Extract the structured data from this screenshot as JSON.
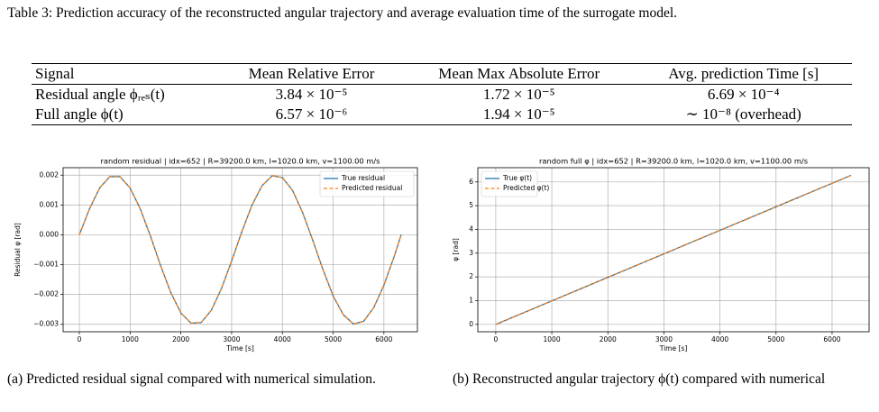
{
  "table": {
    "caption": "Table 3: Prediction accuracy of the reconstructed angular trajectory and average evaluation time of the surrogate model.",
    "header": [
      "Signal",
      "Mean Relative Error",
      "Mean Max Absolute Error",
      "Avg. prediction Time [s]"
    ],
    "rows": [
      [
        "Residual angle ϕᵣₑₛ(t)",
        "3.84 × 10⁻⁵",
        "1.72 × 10⁻⁵",
        "6.69 × 10⁻⁴"
      ],
      [
        "Full angle ϕ(t)",
        "6.57 × 10⁻⁶",
        "1.94 × 10⁻⁵",
        "∼ 10⁻⁸ (overhead)"
      ]
    ]
  },
  "chart_data": [
    {
      "type": "line",
      "title": "random residual | idx=652 | R=39200.0 km, l=1020.0 km, v=1100.00 m/s",
      "x_label": "Time [s]",
      "y_label": "Residual φ [rad]",
      "x": [
        0,
        200,
        400,
        600,
        800,
        1000,
        1200,
        1400,
        1600,
        1800,
        2000,
        2200,
        2400,
        2600,
        2800,
        3000,
        3200,
        3400,
        3600,
        3800,
        4000,
        4200,
        4400,
        4600,
        4800,
        5000,
        5200,
        5400,
        5600,
        5800,
        6000,
        6200,
        6340
      ],
      "series": [
        {
          "name": "True residual",
          "color": "#1f77b4",
          "dash": false,
          "values": [
            0,
            0.00087,
            0.00157,
            0.00195,
            0.00195,
            0.00157,
            0.00087,
            -4e-05,
            -0.00103,
            -0.00193,
            -0.00262,
            -0.00296,
            -0.00294,
            -0.00253,
            -0.0018,
            -0.00088,
            0.0001,
            0.00099,
            0.00165,
            0.00198,
            0.00192,
            0.00149,
            0.00074,
            -0.00019,
            -0.00117,
            -0.00205,
            -0.00268,
            -0.00299,
            -0.0029,
            -0.00244,
            -0.00169,
            -0.00074,
            0
          ]
        },
        {
          "name": "Predicted residual",
          "color": "#ff7f0e",
          "dash": true,
          "values": [
            0,
            0.00087,
            0.00157,
            0.00195,
            0.00195,
            0.00157,
            0.00087,
            -4e-05,
            -0.00103,
            -0.00193,
            -0.00262,
            -0.00296,
            -0.00294,
            -0.00253,
            -0.0018,
            -0.00088,
            0.0001,
            0.00099,
            0.00165,
            0.00198,
            0.00192,
            0.00149,
            0.00074,
            -0.00019,
            -0.00117,
            -0.00205,
            -0.00268,
            -0.00299,
            -0.0029,
            -0.00244,
            -0.00169,
            -0.00074,
            0
          ]
        }
      ],
      "xlim": [
        -320,
        6660
      ],
      "xticks": [
        0,
        1000,
        2000,
        3000,
        4000,
        5000,
        6000
      ],
      "ylim": [
        -0.00325,
        0.00225
      ],
      "yticks": [
        {
          "value": -0.003,
          "label": "−0.003"
        },
        {
          "value": -0.002,
          "label": "−0.002"
        },
        {
          "value": -0.001,
          "label": "−0.001"
        },
        {
          "value": 0,
          "label": "0.000"
        },
        0.001,
        0.002
      ],
      "grid": true,
      "legend": "upper right"
    },
    {
      "type": "line",
      "title": "random full φ | idx=652 | R=39200.0 km, l=1020.0 km, v=1100.00 m/s",
      "x_label": "Time [s]",
      "y_label": "φ [rad]",
      "x": [
        0,
        6340
      ],
      "series": [
        {
          "name": "True φ(t)",
          "color": "#1f77b4",
          "dash": false,
          "values": [
            0,
            6.28
          ]
        },
        {
          "name": "Predicted φ(t)",
          "color": "#ff7f0e",
          "dash": true,
          "values": [
            0,
            6.28
          ]
        }
      ],
      "xlim": [
        -320,
        6660
      ],
      "xticks": [
        0,
        1000,
        2000,
        3000,
        4000,
        5000,
        6000
      ],
      "ylim": [
        -0.31,
        6.6
      ],
      "yticks": [
        0,
        1,
        2,
        3,
        4,
        5,
        6
      ],
      "grid": true,
      "legend": "upper left"
    }
  ],
  "captions": [
    "(a) Predicted residual signal compared with numerical simulation.",
    "(b) Reconstructed angular trajectory ϕ(t) compared with numerical"
  ]
}
